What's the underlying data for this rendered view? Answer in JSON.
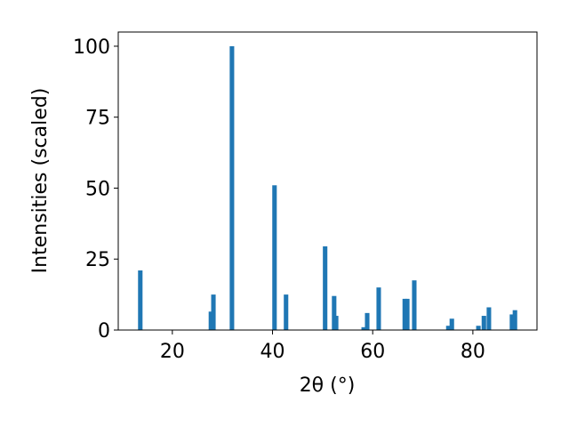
{
  "chart_data": {
    "type": "bar",
    "x": [
      13.6,
      27.7,
      28.2,
      31.9,
      40.4,
      42.7,
      50.5,
      52.3,
      52.7,
      58.2,
      58.9,
      61.2,
      66.4,
      66.9,
      68.3,
      75.1,
      75.8,
      81.1,
      82.2,
      83.2,
      87.8,
      88.4
    ],
    "values": [
      21,
      6.5,
      12.5,
      100,
      51,
      12.5,
      29.5,
      12,
      5,
      1,
      6,
      15,
      11,
      11,
      17.5,
      1.5,
      4,
      1.5,
      5,
      8,
      5.5,
      7
    ],
    "color": "#1f77b4",
    "xlabel": "2θ (°)",
    "ylabel": "Intensities (scaled)",
    "xlim": [
      9.2,
      92.8
    ],
    "ylim": [
      0,
      105
    ],
    "xticks": [
      20,
      40,
      60,
      80
    ],
    "yticks": [
      0,
      25,
      50,
      75,
      100
    ]
  }
}
